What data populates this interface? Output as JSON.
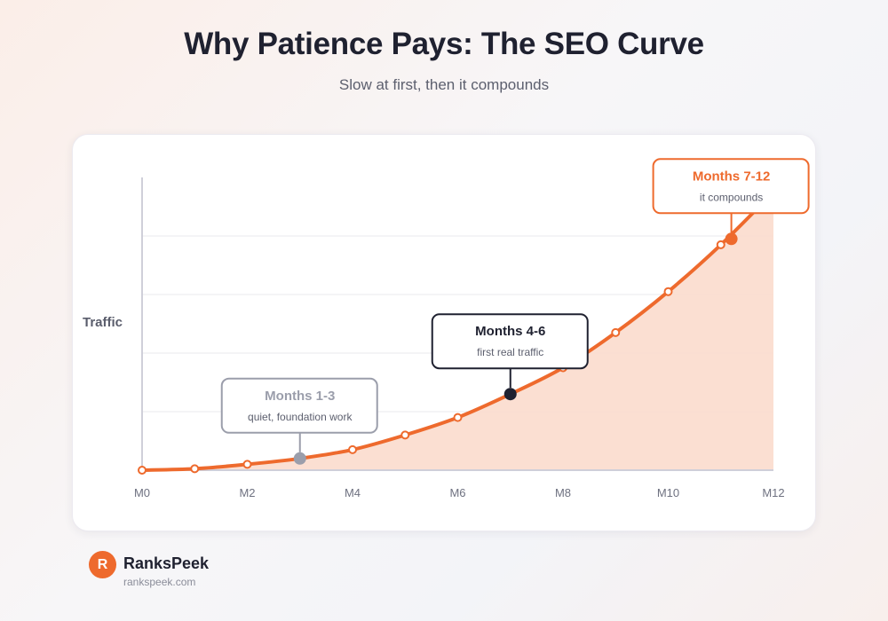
{
  "header": {
    "title": "Why Patience Pays: The SEO Curve",
    "subtitle": "Slow at first, then it compounds"
  },
  "chart_data": {
    "type": "area",
    "title": "Why Patience Pays: The SEO Curve",
    "subtitle": "Slow at first, then it compounds",
    "xlabel": "",
    "ylabel": "Traffic",
    "x": [
      0,
      1,
      2,
      3,
      4,
      5,
      6,
      7,
      8,
      9,
      10,
      11,
      12
    ],
    "x_ticks": [
      0,
      2,
      4,
      6,
      8,
      10,
      12
    ],
    "x_tick_labels": [
      "M0",
      "M2",
      "M4",
      "M6",
      "M8",
      "M10",
      "M12"
    ],
    "y_ticks_visible": false,
    "xlim": [
      0,
      12
    ],
    "ylim": [
      0,
      100
    ],
    "grid": true,
    "series": [
      {
        "values": [
          0,
          0.5,
          2,
          4,
          7,
          12,
          18,
          26,
          35,
          47,
          61,
          77,
          95
        ],
        "color": "#ee6a2d",
        "fill": "#fbdccd"
      }
    ],
    "annotations": [
      {
        "title": "Months 1-3",
        "text": "quiet, foundation work",
        "x": 3,
        "y": 4,
        "style": "muted"
      },
      {
        "title": "Months 4-6",
        "text": "first real traffic",
        "x": 7,
        "y": 26,
        "style": "dark"
      },
      {
        "title": "Months 7-12",
        "text": "it compounds",
        "x": 11.2,
        "y": 79,
        "style": "accent"
      }
    ],
    "colors": {
      "line": "#ee6a2d",
      "area": "#fbdccd",
      "muted": "#9b9eab",
      "dark": "#1f2130",
      "accent": "#ee6a2d",
      "grid": "#e8e8ee",
      "axis": "#cfcfd9"
    }
  },
  "brand": {
    "logo_letter": "R",
    "name": "RanksPeek",
    "url": "rankspeek.com"
  }
}
